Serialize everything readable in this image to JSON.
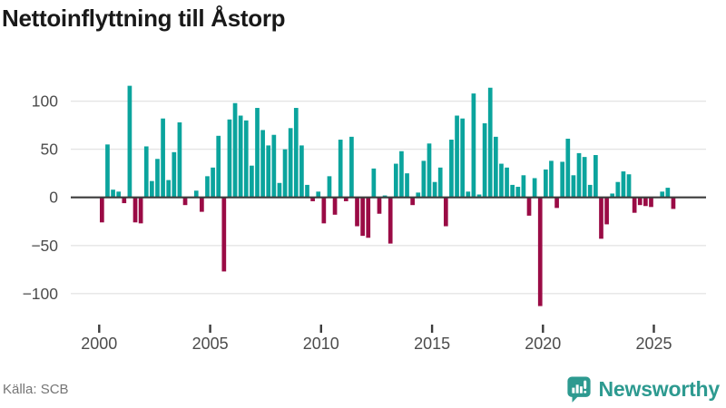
{
  "title": "Nettoinflyttning till Åstorp",
  "source": "Källa: SCB",
  "branding": {
    "name": "Newsworthy"
  },
  "colors": {
    "positive": "#0ba49d",
    "negative": "#9a0b45",
    "grid": "#e4e4e4",
    "axis": "#3c3c3c",
    "axis_label": "#4c4c4c",
    "title": "#191919",
    "source": "#757575",
    "brand": "#2d9a90"
  },
  "chart_data": {
    "type": "bar",
    "title": "Nettoinflyttning till Åstorp",
    "xlabel": "",
    "ylabel": "",
    "x_unit": "quarter",
    "start": "2000-Q1",
    "end": "2025-Q4",
    "grid": true,
    "legend": false,
    "ylim": [
      -120,
      125
    ],
    "y_ticks": [
      100,
      50,
      0,
      -50,
      -100
    ],
    "x_tick_labels": [
      "2000",
      "2005",
      "2010",
      "2015",
      "2020",
      "2025"
    ],
    "series": [
      {
        "year": 2000,
        "values": [
          -26,
          55,
          8,
          6
        ]
      },
      {
        "year": 2001,
        "values": [
          -6,
          116,
          -26,
          -27
        ]
      },
      {
        "year": 2002,
        "values": [
          53,
          17,
          40,
          82
        ]
      },
      {
        "year": 2003,
        "values": [
          18,
          47,
          78,
          -8
        ]
      },
      {
        "year": 2004,
        "values": [
          0,
          7,
          -15,
          22
        ]
      },
      {
        "year": 2005,
        "values": [
          31,
          64,
          -77,
          81
        ]
      },
      {
        "year": 2006,
        "values": [
          98,
          85,
          80,
          33
        ]
      },
      {
        "year": 2007,
        "values": [
          93,
          70,
          54,
          65
        ]
      },
      {
        "year": 2008,
        "values": [
          15,
          50,
          72,
          93
        ]
      },
      {
        "year": 2009,
        "values": [
          54,
          13,
          -4,
          6
        ]
      },
      {
        "year": 2010,
        "values": [
          -27,
          22,
          -18,
          60
        ]
      },
      {
        "year": 2011,
        "values": [
          -4,
          63,
          -30,
          -40
        ]
      },
      {
        "year": 2012,
        "values": [
          -42,
          30,
          -17,
          2
        ]
      },
      {
        "year": 2013,
        "values": [
          -48,
          35,
          48,
          25
        ]
      },
      {
        "year": 2014,
        "values": [
          -8,
          5,
          38,
          56
        ]
      },
      {
        "year": 2015,
        "values": [
          16,
          31,
          -30,
          60
        ]
      },
      {
        "year": 2016,
        "values": [
          85,
          82,
          6,
          108
        ]
      },
      {
        "year": 2017,
        "values": [
          3,
          77,
          114,
          63
        ]
      },
      {
        "year": 2018,
        "values": [
          35,
          31,
          13,
          11
        ]
      },
      {
        "year": 2019,
        "values": [
          23,
          -19,
          20,
          -113
        ]
      },
      {
        "year": 2020,
        "values": [
          29,
          38,
          -11,
          37
        ]
      },
      {
        "year": 2021,
        "values": [
          61,
          23,
          46,
          42
        ]
      },
      {
        "year": 2022,
        "values": [
          13,
          44,
          -43,
          -28
        ]
      },
      {
        "year": 2023,
        "values": [
          4,
          16,
          27,
          24
        ]
      },
      {
        "year": 2024,
        "values": [
          -16,
          -8,
          -9,
          -10
        ]
      },
      {
        "year": 2025,
        "values": [
          0,
          6,
          10,
          -12
        ]
      }
    ]
  }
}
